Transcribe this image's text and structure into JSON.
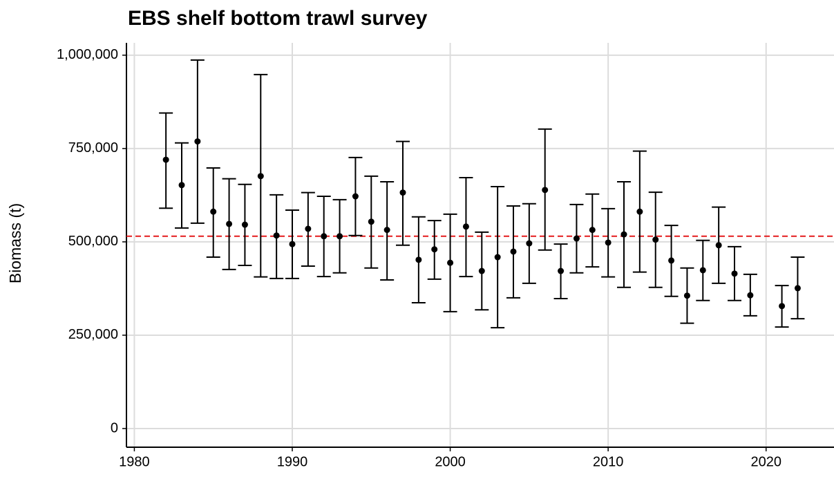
{
  "chart_data": {
    "type": "errorbar",
    "title": "EBS shelf bottom trawl survey",
    "y_label": "Biomass (t)",
    "x": [
      1982,
      1983,
      1984,
      1985,
      1986,
      1987,
      1988,
      1989,
      1990,
      1991,
      1992,
      1993,
      1994,
      1995,
      1996,
      1997,
      1998,
      1999,
      2000,
      2001,
      2002,
      2003,
      2004,
      2005,
      2006,
      2007,
      2008,
      2009,
      2010,
      2011,
      2012,
      2013,
      2014,
      2015,
      2016,
      2017,
      2018,
      2019,
      2021,
      2022
    ],
    "values": [
      720000,
      652000,
      769000,
      581000,
      548000,
      546000,
      676000,
      517000,
      494000,
      535000,
      515000,
      515000,
      622000,
      554000,
      532000,
      632000,
      452000,
      480000,
      444000,
      541000,
      422000,
      459000,
      474000,
      496000,
      639000,
      422000,
      509000,
      532000,
      498000,
      520000,
      581000,
      506000,
      450000,
      356000,
      424000,
      491000,
      415000,
      357000,
      328000,
      376000
    ],
    "lower": [
      590000,
      537000,
      550000,
      459000,
      426000,
      437000,
      406000,
      402000,
      402000,
      435000,
      407000,
      417000,
      517000,
      430000,
      398000,
      491000,
      337000,
      400000,
      313000,
      407000,
      318000,
      270000,
      350000,
      389000,
      478000,
      348000,
      417000,
      433000,
      406000,
      378000,
      419000,
      378000,
      354000,
      282000,
      343000,
      389000,
      343000,
      302000,
      272000,
      294000
    ],
    "upper": [
      845000,
      765000,
      987000,
      698000,
      669000,
      654000,
      948000,
      626000,
      585000,
      632000,
      622000,
      613000,
      726000,
      676000,
      661000,
      769000,
      567000,
      557000,
      574000,
      672000,
      526000,
      648000,
      596000,
      602000,
      802000,
      494000,
      600000,
      628000,
      589000,
      661000,
      743000,
      633000,
      544000,
      430000,
      504000,
      593000,
      487000,
      413000,
      383000,
      459000
    ],
    "color": "#000000",
    "hline": {
      "value": 515000,
      "color": "#e41a1c"
    },
    "xlim": [
      1979.5,
      2024.3
    ],
    "xticks": [
      1980,
      1990,
      2000,
      2010,
      2020
    ],
    "ylim": [
      -50000,
      1033000
    ],
    "yticks": [
      0,
      {
        "value": 250000,
        "label": "250,000"
      },
      {
        "value": 500000,
        "label": "500,000"
      },
      {
        "value": 750000,
        "label": "750,000"
      },
      {
        "value": 1000000,
        "label": "1,000,000"
      }
    ],
    "grid": true
  }
}
